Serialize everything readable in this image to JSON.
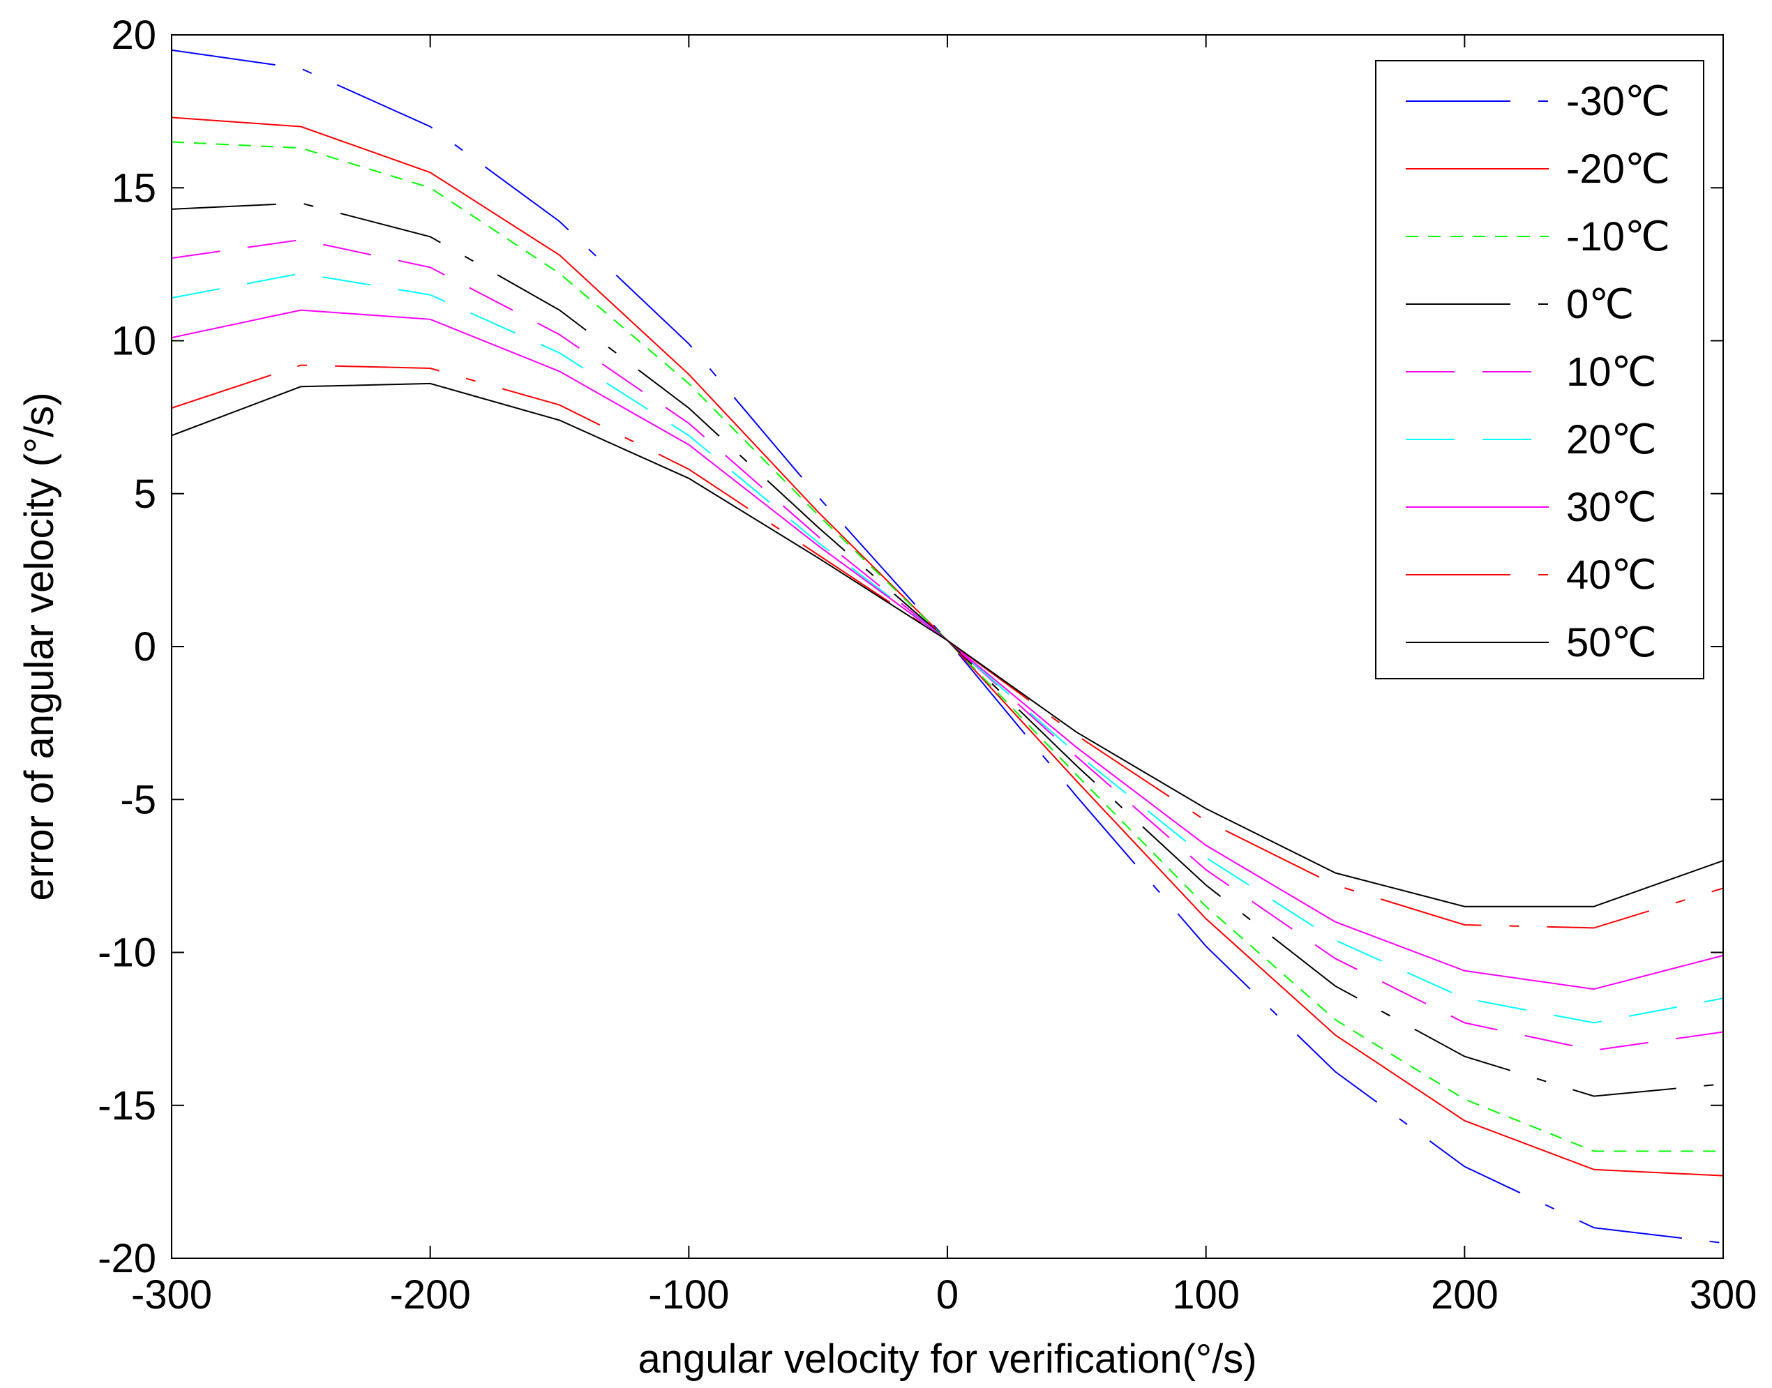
{
  "chart_data": {
    "type": "line",
    "title": "",
    "xlabel": "angular velocity for verification(°/s)",
    "ylabel": "error of angular velocity (°/s)",
    "xlim": [
      -300,
      300
    ],
    "ylim": [
      -20,
      20
    ],
    "xticks": [
      -300,
      -200,
      -100,
      0,
      100,
      200,
      300
    ],
    "xtick_labels": [
      "-300",
      "-200",
      "-100",
      "0",
      "100",
      "200",
      "300"
    ],
    "yticks": [
      20,
      15,
      10,
      5,
      0,
      -5,
      -10,
      -15,
      -20
    ],
    "ytick_labels": [
      "20",
      "15",
      "10",
      "5",
      "0",
      "-5",
      "-10",
      "-15",
      "-20"
    ],
    "grid": false,
    "legend_position": "top-right",
    "x": [
      -300,
      -250,
      -200,
      -150,
      -100,
      -50,
      0,
      50,
      100,
      150,
      200,
      250,
      300
    ],
    "series": [
      {
        "name": "-30℃",
        "color": "#0000ff",
        "dash": "long-dash-dot",
        "values": [
          19.5,
          18.9,
          17.0,
          13.9,
          9.9,
          4.9,
          0.2,
          -4.9,
          -9.8,
          -13.9,
          -17.0,
          -19.0,
          -19.5
        ]
      },
      {
        "name": "-20℃",
        "color": "#ff0000",
        "dash": "solid",
        "values": [
          17.3,
          17.0,
          15.5,
          12.8,
          8.9,
          4.4,
          0.2,
          -4.4,
          -8.9,
          -12.7,
          -15.5,
          -17.1,
          -17.3
        ]
      },
      {
        "name": "-10℃",
        "color": "#00ff00",
        "dash": "dashed",
        "values": [
          16.5,
          16.3,
          15.0,
          12.2,
          8.6,
          4.3,
          0.2,
          -4.2,
          -8.5,
          -12.2,
          -14.8,
          -16.5,
          -16.5
        ]
      },
      {
        "name": "0℃",
        "color": "#000000",
        "dash": "long-dash-dot",
        "values": [
          14.3,
          14.5,
          13.4,
          11.0,
          7.8,
          3.9,
          0.2,
          -3.9,
          -7.8,
          -11.1,
          -13.4,
          -14.7,
          -14.3
        ]
      },
      {
        "name": "10℃",
        "color": "#ff00ff",
        "dash": "long-dash",
        "values": [
          12.7,
          13.3,
          12.4,
          10.2,
          7.3,
          3.6,
          0.2,
          -3.6,
          -7.3,
          -10.2,
          -12.3,
          -13.2,
          -12.6
        ]
      },
      {
        "name": "20℃",
        "color": "#00ffff",
        "dash": "long-dash",
        "values": [
          11.4,
          12.2,
          11.5,
          9.6,
          6.9,
          3.4,
          0.2,
          -3.5,
          -6.9,
          -9.6,
          -11.5,
          -12.3,
          -11.5
        ]
      },
      {
        "name": "30℃",
        "color": "#ff00ff",
        "dash": "solid",
        "values": [
          10.1,
          11.0,
          10.7,
          9.0,
          6.6,
          3.3,
          0.2,
          -3.3,
          -6.5,
          -9.0,
          -10.6,
          -11.2,
          -10.1
        ]
      },
      {
        "name": "40℃",
        "color": "#ff0000",
        "dash": "long-dash-dot",
        "values": [
          7.8,
          9.2,
          9.1,
          7.9,
          5.8,
          3.0,
          0.2,
          -2.9,
          -5.7,
          -7.8,
          -9.1,
          -9.2,
          -7.9
        ]
      },
      {
        "name": "50℃",
        "color": "#000000",
        "dash": "solid",
        "values": [
          6.9,
          8.5,
          8.6,
          7.4,
          5.5,
          2.9,
          0.2,
          -2.8,
          -5.3,
          -7.4,
          -8.5,
          -8.5,
          -7.0
        ]
      }
    ]
  }
}
